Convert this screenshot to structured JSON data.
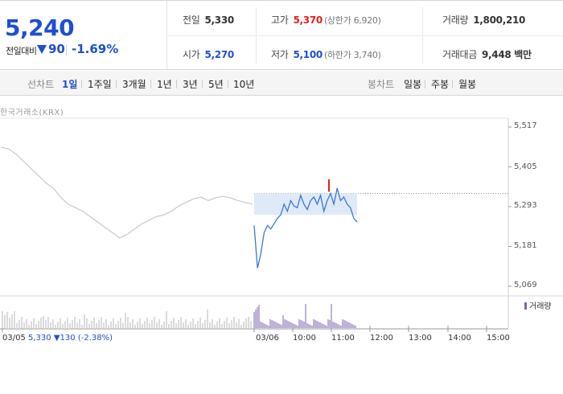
{
  "summary": {
    "price": "5,240",
    "diff_label": "전일대비",
    "diff_value": "90",
    "diff_rate": "-1.69%"
  },
  "stats": {
    "prev_label": "전일",
    "prev_value": "5,330",
    "high_label": "고가",
    "high_value": "5,370",
    "upper_limit": "(상한가 6,920)",
    "volume_label": "거래량",
    "volume_value": "1,800,210",
    "open_label": "시가",
    "open_value": "5,270",
    "low_label": "저가",
    "low_value": "5,100",
    "lower_limit": "(하한가 3,740)",
    "amount_label": "거래대금",
    "amount_value": "9,448 백만"
  },
  "tabs": {
    "line_title": "선차트",
    "line_tabs": [
      "1일",
      "1주일",
      "3개월",
      "1년",
      "3년",
      "5년",
      "10년"
    ],
    "candle_title": "봉차트",
    "candle_tabs": [
      "일봉",
      "주봉",
      "월봉"
    ],
    "active": "1일"
  },
  "chart_labels": {
    "source": "한국거래소(KRX)",
    "volume_legend": "거래량",
    "prev_day": "03/05",
    "prev_close": "5,330",
    "prev_change": "130",
    "prev_rate": "(-2.38%)"
  },
  "colors": {
    "up": "#e0211e",
    "down": "#1e4fd1",
    "prev_line": "#c8c8c8",
    "today_line": "#3a78d8",
    "volume": "#7f63b0"
  },
  "chart_data": {
    "type": "line",
    "y_ticks": [
      "5,517",
      "5,405",
      "5,293",
      "5,181",
      "5,069"
    ],
    "ylim": [
      5069,
      5517
    ],
    "x_ticks": [
      "03/06",
      "10:00",
      "11:00",
      "12:00",
      "13:00",
      "14:00",
      "15:00"
    ],
    "prev_close_level": 5330,
    "series": [
      {
        "values": [
          5460,
          5455,
          5440,
          5420,
          5400,
          5380,
          5360,
          5345,
          5320,
          5300,
          5290,
          5280,
          5265,
          5250,
          5235,
          5220,
          5205,
          5215,
          5230,
          5245,
          5255,
          5265,
          5270,
          5280,
          5295,
          5305,
          5315,
          5320,
          5310,
          5318,
          5322,
          5318,
          5310,
          5305,
          5300
        ]
      },
      {
        "values": [
          5240,
          5120,
          5160,
          5220,
          5240,
          5230,
          5245,
          5260,
          5270,
          5300,
          5280,
          5310,
          5295,
          5290,
          5325,
          5300,
          5285,
          5310,
          5320,
          5300,
          5325,
          5280,
          5310,
          5330,
          5300,
          5345,
          5310,
          5320,
          5300,
          5290,
          5260,
          5250
        ]
      }
    ]
  }
}
